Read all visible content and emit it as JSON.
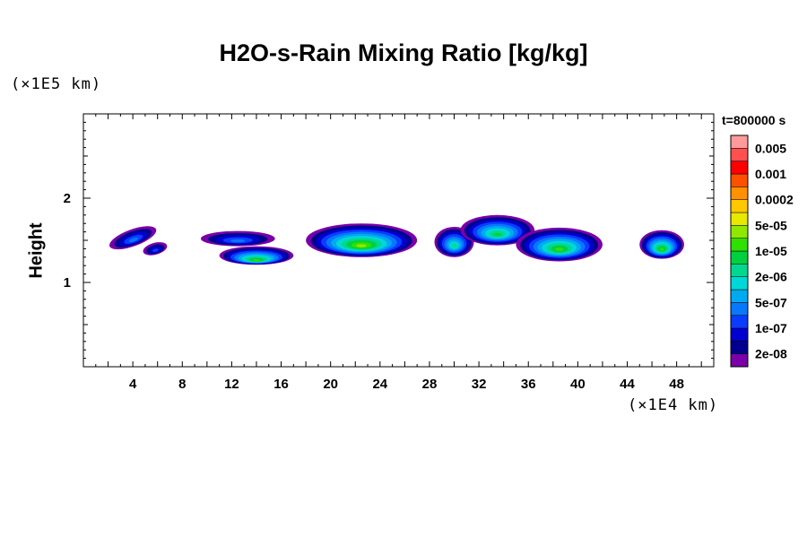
{
  "chart_data": {
    "type": "heatmap",
    "title": "H2O-s-Rain Mixing Ratio [kg/kg]",
    "ylabel": "Height",
    "xlabel": "",
    "x_scale_label": "(×1E4 km)",
    "y_scale_label": "(×1E5 km)",
    "time_label": "t=800000 s",
    "xlim": [
      0,
      51
    ],
    "ylim": [
      0,
      3
    ],
    "x_ticks": [
      4,
      8,
      12,
      16,
      20,
      24,
      28,
      32,
      36,
      40,
      44,
      48
    ],
    "y_ticks": [
      1,
      2
    ],
    "colorbar": {
      "colors": [
        "#7a00a8",
        "#00008c",
        "#0000d0",
        "#0a3cff",
        "#0878ff",
        "#00aaf0",
        "#00d8d8",
        "#00d890",
        "#00d040",
        "#30e000",
        "#90e800",
        "#e8e800",
        "#ffc800",
        "#ff9000",
        "#ff5000",
        "#ff0000",
        "#ff5050",
        "#ff9a9a"
      ],
      "labels": [
        "2e-08",
        "1e-07",
        "5e-07",
        "2e-06",
        "1e-05",
        "5e-05",
        "0.0002",
        "0.001",
        "0.005"
      ]
    },
    "cells": [
      {
        "x": 4.0,
        "y": 1.53,
        "rx": 2.0,
        "ry": 0.1,
        "level": 4,
        "tilt": -20
      },
      {
        "x": 5.8,
        "y": 1.4,
        "rx": 1.0,
        "ry": 0.07,
        "level": 3,
        "tilt": -15
      },
      {
        "x": 12.5,
        "y": 1.52,
        "rx": 3.0,
        "ry": 0.09,
        "level": 4,
        "tilt": 0
      },
      {
        "x": 14.0,
        "y": 1.32,
        "rx": 3.0,
        "ry": 0.11,
        "level": 9,
        "tilt": 0
      },
      {
        "x": 22.5,
        "y": 1.5,
        "rx": 4.5,
        "ry": 0.2,
        "level": 10,
        "tilt": 0
      },
      {
        "x": 30.0,
        "y": 1.48,
        "rx": 1.6,
        "ry": 0.18,
        "level": 7,
        "tilt": 0
      },
      {
        "x": 33.5,
        "y": 1.62,
        "rx": 3.0,
        "ry": 0.18,
        "level": 8,
        "tilt": 0
      },
      {
        "x": 38.5,
        "y": 1.45,
        "rx": 3.5,
        "ry": 0.2,
        "level": 9,
        "tilt": 0
      },
      {
        "x": 46.8,
        "y": 1.45,
        "rx": 1.8,
        "ry": 0.17,
        "level": 9,
        "tilt": 0
      }
    ]
  }
}
